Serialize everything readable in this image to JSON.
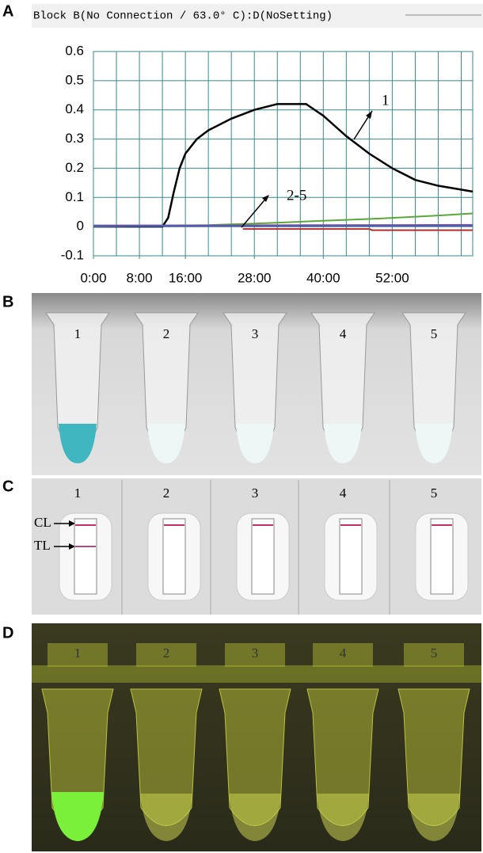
{
  "header": "Block B(No Connection / 63.0° C):D(NoSetting)",
  "panel_labels": [
    "A",
    "B",
    "C",
    "D"
  ],
  "chart_data": {
    "type": "line",
    "xlim": [
      0,
      66
    ],
    "ylim": [
      -0.1,
      0.6
    ],
    "xticks": [
      {
        "value": 0,
        "label": "0:00"
      },
      {
        "value": 8,
        "label": "8:00"
      },
      {
        "value": 16,
        "label": "16:00"
      },
      {
        "value": 28,
        "label": "28:00"
      },
      {
        "value": 40,
        "label": "40:00"
      },
      {
        "value": 52,
        "label": "52:00"
      }
    ],
    "xgrid": [
      0,
      4,
      8,
      12,
      16,
      20,
      24,
      28,
      32,
      36,
      40,
      44,
      48,
      52,
      56,
      60,
      64
    ],
    "yticks": [
      -0.1,
      0,
      0.1,
      0.2,
      0.3,
      0.4,
      0.5,
      0.6
    ],
    "grid": true,
    "series": [
      {
        "color": "#000000",
        "x": [
          0,
          12,
          13,
          14,
          15,
          16,
          18,
          20,
          24,
          28,
          32,
          37,
          40,
          44,
          48,
          52,
          56,
          60,
          66
        ],
        "values": [
          0,
          0,
          0.03,
          0.12,
          0.2,
          0.25,
          0.3,
          0.33,
          0.37,
          0.4,
          0.42,
          0.42,
          0.38,
          0.31,
          0.25,
          0.2,
          0.16,
          0.14,
          0.12
        ]
      },
      {
        "color": "#5aa83a",
        "x": [
          0,
          20,
          30,
          40,
          50,
          60,
          66
        ],
        "values": [
          0,
          0.005,
          0.012,
          0.02,
          0.028,
          0.038,
          0.045
        ]
      },
      {
        "color": "#8a4fa0",
        "x": [
          0,
          66
        ],
        "values": [
          0.004,
          0.006
        ]
      },
      {
        "color": "#3c5fb0",
        "x": [
          0,
          66
        ],
        "values": [
          0.001,
          0.002
        ]
      },
      {
        "color": "#b03030",
        "x": [
          26,
          48,
          48.5,
          66
        ],
        "values": [
          -0.008,
          -0.008,
          -0.012,
          -0.012
        ]
      }
    ],
    "annotations": [
      "1",
      "2-5"
    ]
  },
  "tube_labels_b": [
    "1",
    "2",
    "3",
    "4",
    "5"
  ],
  "strip_labels_c": [
    "1",
    "2",
    "3",
    "4",
    "5"
  ],
  "line_labels_c": [
    "CL",
    "TL"
  ],
  "tube_labels_d": [
    "1",
    "2",
    "3",
    "4",
    "5"
  ]
}
